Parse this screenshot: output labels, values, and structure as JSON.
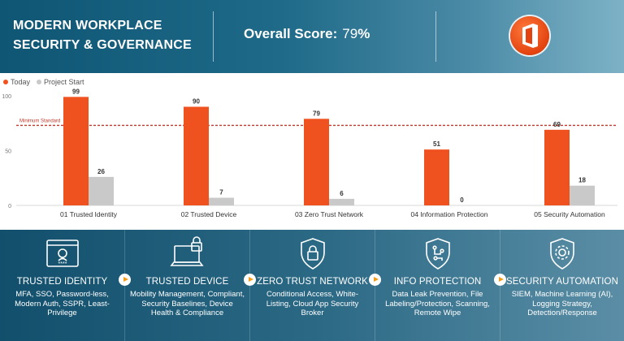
{
  "header": {
    "title": "Modern Workplace Security & Governance",
    "score_label": "Overall Score:",
    "score_value": "79",
    "score_unit": "%",
    "logo_icon": "office-logo-icon"
  },
  "legend": [
    {
      "label": "Today",
      "color": "#f0521f"
    },
    {
      "label": "Project Start",
      "color": "#c9c9c9"
    }
  ],
  "chart_data": {
    "type": "bar",
    "categories": [
      "01 Trusted Identity",
      "02 Trusted Device",
      "03 Zero Trust Network",
      "04 Information Protection",
      "05 Security Automation"
    ],
    "series": [
      {
        "name": "Today",
        "values": [
          99,
          90,
          79,
          51,
          69
        ],
        "color": "#f0521f"
      },
      {
        "name": "Project Start",
        "values": [
          26,
          7,
          6,
          0,
          18
        ],
        "color": "#c9c9c9"
      }
    ],
    "ylim": [
      0,
      100
    ],
    "yticks": [
      0,
      50,
      100
    ],
    "reference_line": {
      "label": "Minimum Standard",
      "value": 73,
      "color": "#c0392b"
    },
    "grid": false,
    "legend": "top-left"
  },
  "cards": [
    {
      "icon": "identity-login-icon",
      "title": "Trusted Identity",
      "desc": "MFA, SSO, Password-less, Modern Auth, SSPR, Least-Privilege"
    },
    {
      "icon": "laptop-lock-icon",
      "title": "Trusted Device",
      "desc": "Mobility Management, Compliant, Security Baselines, Device Health & Compliance"
    },
    {
      "icon": "shield-lock-icon",
      "title": "Zero Trust Network",
      "desc": "Conditional Access, White-Listing, Cloud App Security Broker"
    },
    {
      "icon": "shield-circuit-icon",
      "title": "Info Protection",
      "desc": "Data Leak Prevention, File Labeling/Protection, Scanning, Remote Wipe"
    },
    {
      "icon": "shield-gear-icon",
      "title": "Security Automation",
      "desc": "SIEM, Machine Learning (AI), Logging Strategy, Detection/Response"
    }
  ]
}
